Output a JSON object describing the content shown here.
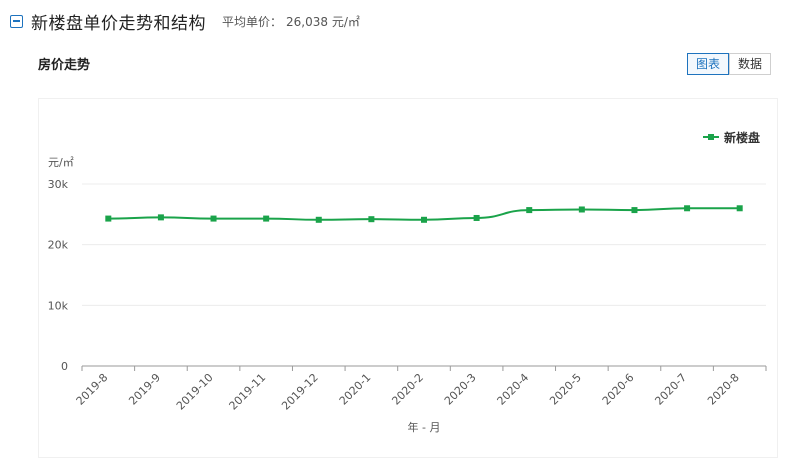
{
  "header": {
    "title": "新楼盘单价走势和结构",
    "avg_label": "平均单价：",
    "avg_value": "26,038 元/㎡"
  },
  "sub_title": "房价走势",
  "toggle": {
    "chart_label": "图表",
    "data_label": "数据"
  },
  "colors": {
    "series": "#1aa34a",
    "accent": "#1e73be"
  },
  "chart_data": {
    "type": "line",
    "x": [
      "2019-8",
      "2019-9",
      "2019-10",
      "2019-11",
      "2019-12",
      "2020-1",
      "2020-2",
      "2020-3",
      "2020-4",
      "2020-5",
      "2020-6",
      "2020-7",
      "2020-8"
    ],
    "series": [
      {
        "name": "新楼盘",
        "values": [
          24300,
          24500,
          24300,
          24300,
          24100,
          24200,
          24100,
          24400,
          25700,
          25800,
          25700,
          26000,
          26000
        ]
      }
    ],
    "xlabel": "年 - 月",
    "ylabel": "元/㎡",
    "ylim": [
      0,
      30000
    ],
    "yticks": [
      0,
      10000,
      20000,
      30000
    ],
    "ytick_labels": [
      "0",
      "10k",
      "20k",
      "30k"
    ],
    "grid": true,
    "legend": "top-right"
  }
}
